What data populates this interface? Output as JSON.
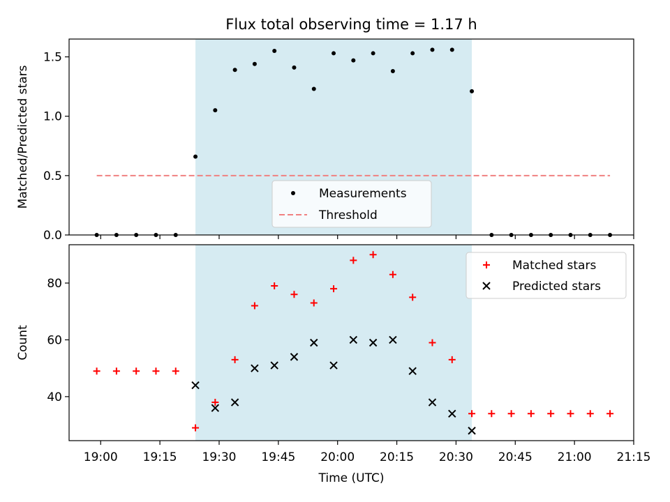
{
  "chart_data": [
    {
      "type": "scatter",
      "title": "Flux total observing time = 1.17 h",
      "xlabel": "",
      "ylabel": "Matched/Predicted stars",
      "ylim": [
        0,
        1.65
      ],
      "yticks": [
        0.0,
        0.5,
        1.0,
        1.5
      ],
      "ytick_labels": [
        "0.0",
        "0.5",
        "1.0",
        "1.5"
      ],
      "grid": false,
      "shaded_interval": {
        "start": "19:24",
        "end": "20:34",
        "color": "#add8e6"
      },
      "legend_position": "lower-center",
      "series": [
        {
          "name": "Measurements",
          "marker": "dot",
          "color": "#000000",
          "x": [
            "18:59",
            "19:04",
            "19:09",
            "19:14",
            "19:19",
            "19:24",
            "19:29",
            "19:34",
            "19:39",
            "19:44",
            "19:49",
            "19:54",
            "19:59",
            "20:04",
            "20:09",
            "20:14",
            "20:19",
            "20:24",
            "20:29",
            "20:34",
            "20:39",
            "20:44",
            "20:49",
            "20:54",
            "20:59",
            "21:04",
            "21:09"
          ],
          "values": [
            0.0,
            0.0,
            0.0,
            0.0,
            0.0,
            0.66,
            1.05,
            1.39,
            1.44,
            1.55,
            1.41,
            1.23,
            1.53,
            1.47,
            1.53,
            1.38,
            1.53,
            1.56,
            1.56,
            1.21,
            0.0,
            0.0,
            0.0,
            0.0,
            0.0,
            0.0,
            0.0
          ]
        },
        {
          "name": "Threshold",
          "style": "dashed",
          "color": "#f08080",
          "x": [
            "18:59",
            "21:09"
          ],
          "values": [
            0.5,
            0.5
          ]
        }
      ]
    },
    {
      "type": "scatter",
      "title": "",
      "xlabel": "Time (UTC)",
      "ylabel": "Count",
      "ylim": [
        24.5,
        93.5
      ],
      "yticks": [
        40,
        60,
        80
      ],
      "ytick_labels": [
        "40",
        "60",
        "80"
      ],
      "xlim": [
        "18:52",
        "21:15"
      ],
      "xticks": [
        "19:00",
        "19:15",
        "19:30",
        "19:45",
        "20:00",
        "20:15",
        "20:30",
        "20:45",
        "21:00",
        "21:15"
      ],
      "xtick_labels": [
        "19:00",
        "19:15",
        "19:30",
        "19:45",
        "20:00",
        "20:15",
        "20:30",
        "20:45",
        "21:00",
        "21:15"
      ],
      "grid": false,
      "shaded_interval": {
        "start": "19:24",
        "end": "20:34",
        "color": "#add8e6"
      },
      "legend_position": "top-right",
      "series": [
        {
          "name": "Matched stars",
          "marker": "plus",
          "color": "#ff0000",
          "x": [
            "18:59",
            "19:04",
            "19:09",
            "19:14",
            "19:19",
            "19:24",
            "19:29",
            "19:34",
            "19:39",
            "19:44",
            "19:49",
            "19:54",
            "19:59",
            "20:04",
            "20:09",
            "20:14",
            "20:19",
            "20:24",
            "20:29",
            "20:34",
            "20:39",
            "20:44",
            "20:49",
            "20:54",
            "20:59",
            "21:04",
            "21:09"
          ],
          "values": [
            49,
            49,
            49,
            49,
            49,
            29,
            38,
            53,
            72,
            79,
            76,
            73,
            78,
            88,
            90,
            83,
            75,
            59,
            53,
            34,
            34,
            34,
            34,
            34,
            34,
            34,
            34
          ]
        },
        {
          "name": "Predicted stars",
          "marker": "x",
          "color": "#000000",
          "x": [
            "19:24",
            "19:29",
            "19:34",
            "19:39",
            "19:44",
            "19:49",
            "19:54",
            "19:59",
            "20:04",
            "20:09",
            "20:14",
            "20:19",
            "20:24",
            "20:29",
            "20:34"
          ],
          "values": [
            44,
            36,
            38,
            50,
            51,
            54,
            59,
            51,
            60,
            59,
            60,
            49,
            38,
            34,
            28
          ]
        }
      ]
    }
  ]
}
